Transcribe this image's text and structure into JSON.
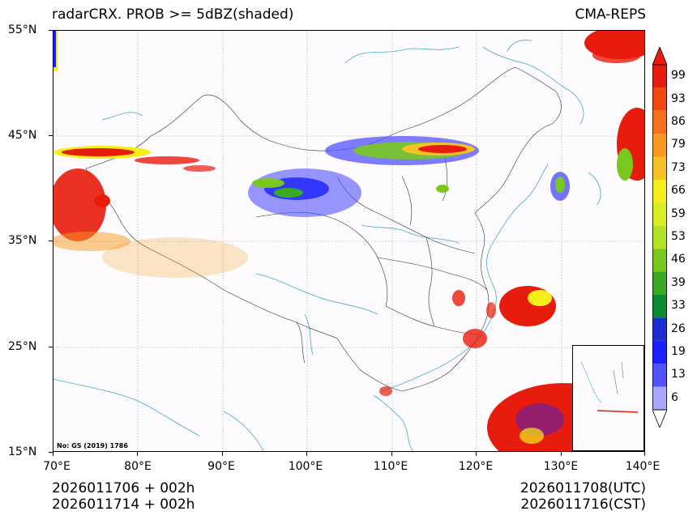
{
  "title": {
    "left": "radarCRX. PROB >= 5dBZ(shaded)",
    "right": "CMA-REPS"
  },
  "axes": {
    "lat_labels": [
      "55°N",
      "45°N",
      "35°N",
      "25°N",
      "15°N"
    ],
    "lon_labels": [
      "70°E",
      "80°E",
      "90°E",
      "100°E",
      "110°E",
      "120°E",
      "130°E",
      "140°E"
    ],
    "lat_range": [
      15,
      55
    ],
    "lon_range": [
      70,
      140
    ]
  },
  "colorbar": {
    "labels": [
      "99",
      "93",
      "86",
      "79",
      "73",
      "66",
      "59",
      "53",
      "46",
      "39",
      "33",
      "26",
      "19",
      "13",
      "6"
    ],
    "colors": [
      "#e81c0c",
      "#f04a10",
      "#f5721a",
      "#f89a22",
      "#f7c228",
      "#f6ee1a",
      "#d8ee22",
      "#b2e228",
      "#78c820",
      "#3aaa24",
      "#0c8a30",
      "#1c2ed0",
      "#1a20ff",
      "#5252ff",
      "#a8a8ff"
    ]
  },
  "map_note": "No: GS (2019) 1786",
  "footer": {
    "init_utc": "2026011706  +  002h",
    "init_cst": "2026011714  +  002h",
    "valid_utc": "2026011708(UTC)",
    "valid_cst": "2026011716(CST)"
  },
  "colors": {
    "river": "#3fa8d8",
    "border": "#333333",
    "grid": "#999999"
  }
}
